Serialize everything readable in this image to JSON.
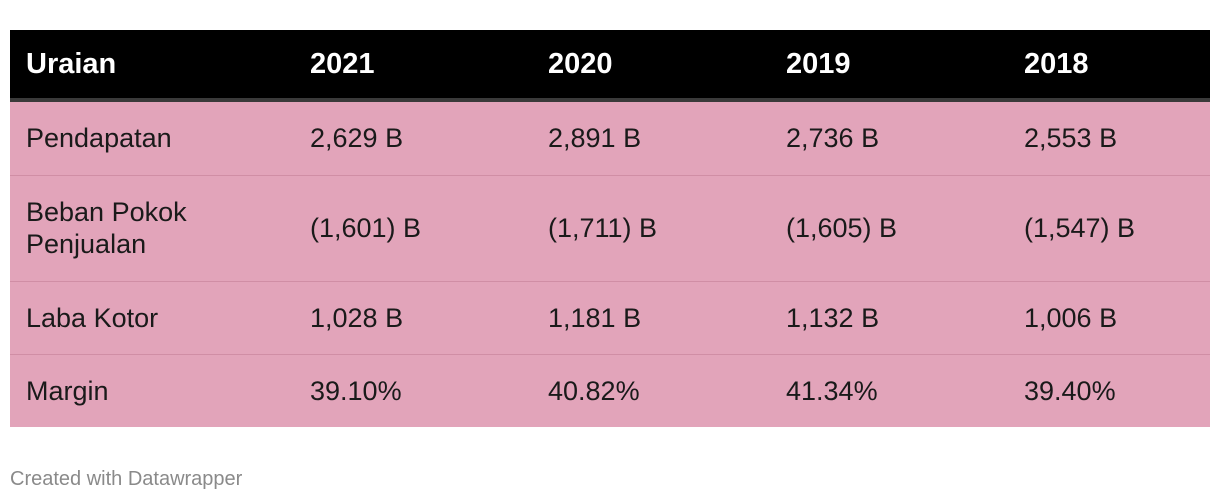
{
  "chart_data": {
    "type": "table",
    "columns": [
      "Uraian",
      "2021",
      "2020",
      "2019",
      "2018"
    ],
    "rows": [
      [
        "Pendapatan",
        "2,629 B",
        "2,891 B",
        "2,736 B",
        "2,553 B"
      ],
      [
        "Beban Pokok Penjualan",
        "(1,601) B",
        "(1,711) B",
        "(1,605) B",
        "(1,547) B"
      ],
      [
        "Laba Kotor",
        "1,028 B",
        "1,181 B",
        "1,132 B",
        "1,006 B"
      ],
      [
        "Margin",
        "39.10%",
        "40.82%",
        "41.34%",
        "39.40%"
      ]
    ],
    "colors": {
      "header_background": "#000000",
      "header_text": "#ffffff",
      "row_background": "#e2a4ba"
    }
  },
  "footer": {
    "credit": "Created with Datawrapper"
  }
}
